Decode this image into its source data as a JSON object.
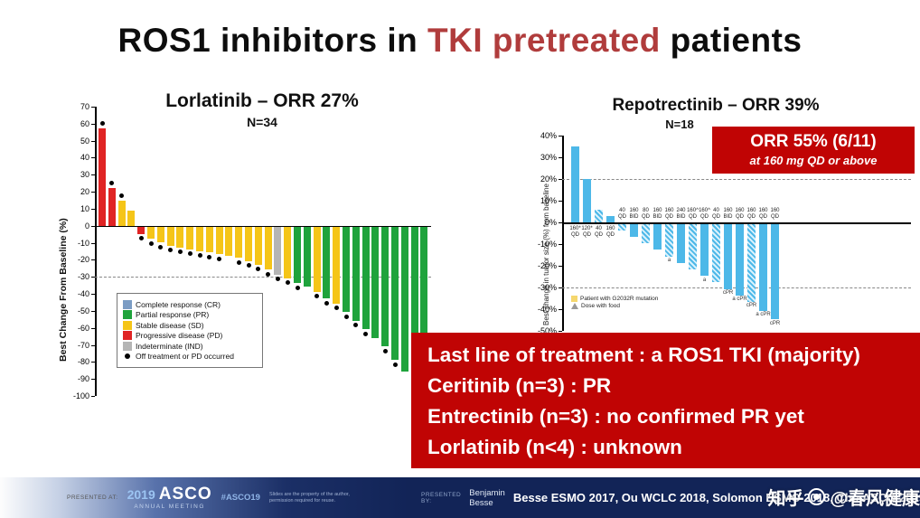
{
  "title": {
    "part1": "ROS1 inhibitors in ",
    "accent": "TKI pretreated",
    "part2": " patients"
  },
  "theme": {
    "accent_red": "#b03c3c",
    "box_red": "#c00404",
    "footer_navy": "#122457",
    "bar_blue": "#4db8e8"
  },
  "chart_data": [
    {
      "type": "bar",
      "title": "Lorlatinib – ORR 27%",
      "n_label": "N=34",
      "ylabel": "Best Change From Baseline (%)",
      "ylim": [
        -100,
        70
      ],
      "yticks": [
        70,
        60,
        50,
        40,
        30,
        20,
        10,
        0,
        -10,
        -20,
        -30,
        -40,
        -50,
        -60,
        -70,
        -80,
        -90,
        -100
      ],
      "reference_line": -30,
      "grid": false,
      "legend_position": "lower-left",
      "colors": {
        "CR": "#7b9cc4",
        "PR": "#1fa33c",
        "SD": "#f5c518",
        "PD": "#e02424",
        "IND": "#b5b5b5"
      },
      "legend": [
        {
          "key": "CR",
          "label": "Complete response (CR)"
        },
        {
          "key": "PR",
          "label": "Partial response (PR)"
        },
        {
          "key": "SD",
          "label": "Stable disease (SD)"
        },
        {
          "key": "PD",
          "label": "Progressive disease (PD)"
        },
        {
          "key": "IND",
          "label": "Indeterminate (IND)"
        },
        {
          "key": "dot",
          "label": "Off treatment or PD occurred"
        }
      ],
      "bars": [
        {
          "value": 57,
          "response": "PD",
          "dot": true
        },
        {
          "value": 22,
          "response": "PD",
          "dot": true
        },
        {
          "value": 15,
          "response": "SD",
          "dot": true
        },
        {
          "value": 9,
          "response": "SD",
          "dot": false
        },
        {
          "value": -4,
          "response": "PD",
          "dot": true
        },
        {
          "value": -7,
          "response": "SD",
          "dot": true
        },
        {
          "value": -9,
          "response": "SD",
          "dot": true
        },
        {
          "value": -11,
          "response": "SD",
          "dot": true
        },
        {
          "value": -12,
          "response": "SD",
          "dot": true
        },
        {
          "value": -13,
          "response": "SD",
          "dot": true
        },
        {
          "value": -14,
          "response": "SD",
          "dot": true
        },
        {
          "value": -15,
          "response": "SD",
          "dot": true
        },
        {
          "value": -16,
          "response": "SD",
          "dot": true
        },
        {
          "value": -17,
          "response": "SD",
          "dot": false
        },
        {
          "value": -18,
          "response": "SD",
          "dot": true
        },
        {
          "value": -20,
          "response": "SD",
          "dot": true
        },
        {
          "value": -22,
          "response": "SD",
          "dot": true
        },
        {
          "value": -25,
          "response": "SD",
          "dot": true
        },
        {
          "value": -28,
          "response": "IND",
          "dot": true
        },
        {
          "value": -30,
          "response": "SD",
          "dot": true
        },
        {
          "value": -33,
          "response": "PR",
          "dot": true
        },
        {
          "value": -35,
          "response": "PR",
          "dot": false
        },
        {
          "value": -38,
          "response": "SD",
          "dot": true
        },
        {
          "value": -42,
          "response": "PR",
          "dot": true
        },
        {
          "value": -45,
          "response": "SD",
          "dot": true
        },
        {
          "value": -50,
          "response": "PR",
          "dot": true
        },
        {
          "value": -55,
          "response": "PR",
          "dot": true
        },
        {
          "value": -60,
          "response": "PR",
          "dot": true
        },
        {
          "value": -65,
          "response": "PR",
          "dot": false
        },
        {
          "value": -70,
          "response": "PR",
          "dot": true
        },
        {
          "value": -78,
          "response": "PR",
          "dot": true
        },
        {
          "value": -85,
          "response": "PR",
          "dot": false
        },
        {
          "value": -92,
          "response": "PR",
          "dot": true
        },
        {
          "value": -100,
          "response": "PR",
          "dot": true
        }
      ]
    },
    {
      "type": "bar",
      "title": "Repotrectinib – ORR 39%",
      "n_label": "N=18",
      "ylabel": "Best change in tumor size (%) from baseline",
      "ylim": [
        -50,
        40
      ],
      "yticks": [
        40,
        30,
        20,
        10,
        0,
        -10,
        -20,
        -30,
        -40,
        -50
      ],
      "reference_lines": [
        20,
        -30
      ],
      "grid": false,
      "bar_color": "#4db8e8",
      "callout": {
        "line1": "ORR 55% (6/11)",
        "line2": "at 160 mg QD or above"
      },
      "legend": [
        {
          "marker": "square",
          "color": "#f5d76e",
          "label": "Patient with G2032R mutation"
        },
        {
          "marker": "triangle",
          "color": "#999999",
          "label": "Dose with food"
        }
      ],
      "bars": [
        {
          "value": 35,
          "dose": "160*",
          "sched": "QD",
          "hatched": false,
          "note": ""
        },
        {
          "value": 20,
          "dose": "120*",
          "sched": "QD",
          "hatched": false,
          "note": ""
        },
        {
          "value": 6,
          "dose": "40",
          "sched": "QD",
          "hatched": true,
          "note": ""
        },
        {
          "value": 3,
          "dose": "160",
          "sched": "QD",
          "hatched": false,
          "note": ""
        },
        {
          "value": -3,
          "dose": "40",
          "sched": "QD",
          "hatched": true,
          "note": ""
        },
        {
          "value": -6,
          "dose": "160",
          "sched": "BID",
          "hatched": false,
          "note": ""
        },
        {
          "value": -9,
          "dose": "80",
          "sched": "QD",
          "hatched": true,
          "note": ""
        },
        {
          "value": -12,
          "dose": "160",
          "sched": "BID",
          "hatched": false,
          "note": ""
        },
        {
          "value": -15,
          "dose": "160",
          "sched": "QD",
          "hatched": true,
          "note": "a"
        },
        {
          "value": -18,
          "dose": "240",
          "sched": "BID",
          "hatched": false,
          "note": ""
        },
        {
          "value": -21,
          "dose": "160^",
          "sched": "QD",
          "hatched": true,
          "note": ""
        },
        {
          "value": -24,
          "dose": "160^",
          "sched": "QD",
          "hatched": false,
          "note": "a"
        },
        {
          "value": -27,
          "dose": "40",
          "sched": "QD",
          "hatched": true,
          "note": ""
        },
        {
          "value": -30,
          "dose": "160",
          "sched": "BID",
          "hatched": false,
          "note": "cPR"
        },
        {
          "value": -33,
          "dose": "160",
          "sched": "QD",
          "hatched": false,
          "note": "a cPR"
        },
        {
          "value": -36,
          "dose": "160",
          "sched": "QD",
          "hatched": true,
          "note": "cPR"
        },
        {
          "value": -40,
          "dose": "160",
          "sched": "QD",
          "hatched": false,
          "note": "a cPR"
        },
        {
          "value": -44,
          "dose": "160",
          "sched": "QD",
          "hatched": false,
          "note": "cPR"
        }
      ]
    }
  ],
  "info_box": {
    "lines": [
      "Last line of treatment : a ROS1 TKI (majority)",
      "Ceritinib (n=3) : PR",
      "Entrectinib (n=3) : no confirmed PR yet",
      "Lorlatinib (n<4) : unknown"
    ]
  },
  "footer": {
    "presented_at_label": "PRESENTED AT:",
    "meeting_year": "2019",
    "meeting_name": "ASCO",
    "meeting_sub": "ANNUAL MEETING",
    "hashtag": "#ASCO19",
    "disclaimer": "Slides are the property of the author, permission required for reuse.",
    "presented_by_label": "PRESENTED BY:",
    "presenter": "Benjamin Besse",
    "references": "Besse ESMO 2017, Ou WCLC 2018,  Solomon ESMO 2018, Cho ASCO 2019"
  },
  "watermark": {
    "site": "知乎",
    "handle": "@春风健康"
  }
}
